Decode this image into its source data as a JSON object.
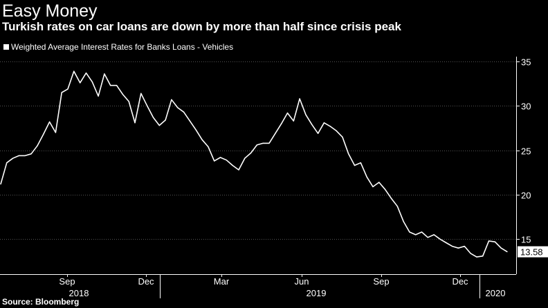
{
  "title": "Easy Money",
  "subtitle": "Turkish rates on car loans are down by more than half since crisis peak",
  "source": "Source: Bloomberg",
  "colors": {
    "background": "#000000",
    "line": "#ffffff",
    "grid": "#555555"
  },
  "chart_data": {
    "type": "line",
    "title": "Easy Money",
    "subtitle": "Turkish rates on car loans are down by more than half since crisis peak",
    "legend_position": "top-left",
    "grid": true,
    "y_axis_side": "right",
    "ylim": [
      12,
      36
    ],
    "yticks": [
      15,
      20,
      25,
      30,
      35
    ],
    "month_ticks": [
      "Sep",
      "Dec",
      "Mar",
      "Jun",
      "Sep",
      "Dec"
    ],
    "year_labels": [
      "2018",
      "2019",
      "2020"
    ],
    "last_value_label": "13.58",
    "series": [
      {
        "name": "Weighted Average Interest Rates for Banks Loans - Vehicles",
        "color": "#ffffff",
        "values": [
          21.2,
          23.6,
          24.1,
          24.4,
          24.4,
          24.6,
          25.5,
          26.8,
          28.2,
          27.0,
          31.5,
          31.9,
          33.9,
          32.6,
          33.7,
          32.7,
          31.1,
          33.6,
          32.3,
          32.3,
          31.3,
          30.5,
          28.1,
          31.4,
          30.0,
          28.7,
          27.8,
          28.4,
          30.7,
          29.8,
          29.3,
          28.3,
          27.3,
          26.2,
          25.4,
          23.8,
          24.2,
          23.9,
          23.3,
          22.8,
          24.1,
          24.7,
          25.6,
          25.8,
          25.8,
          26.9,
          28.0,
          29.2,
          28.3,
          30.8,
          29.0,
          27.9,
          26.9,
          28.1,
          27.7,
          27.2,
          26.5,
          24.6,
          23.3,
          23.6,
          22.0,
          20.9,
          21.4,
          20.6,
          19.6,
          18.7,
          17.0,
          15.8,
          15.5,
          15.8,
          15.2,
          15.5,
          15.0,
          14.6,
          14.2,
          14.0,
          14.2,
          13.4,
          13.0,
          13.1,
          14.8,
          14.7,
          14.0,
          13.58
        ]
      }
    ]
  }
}
